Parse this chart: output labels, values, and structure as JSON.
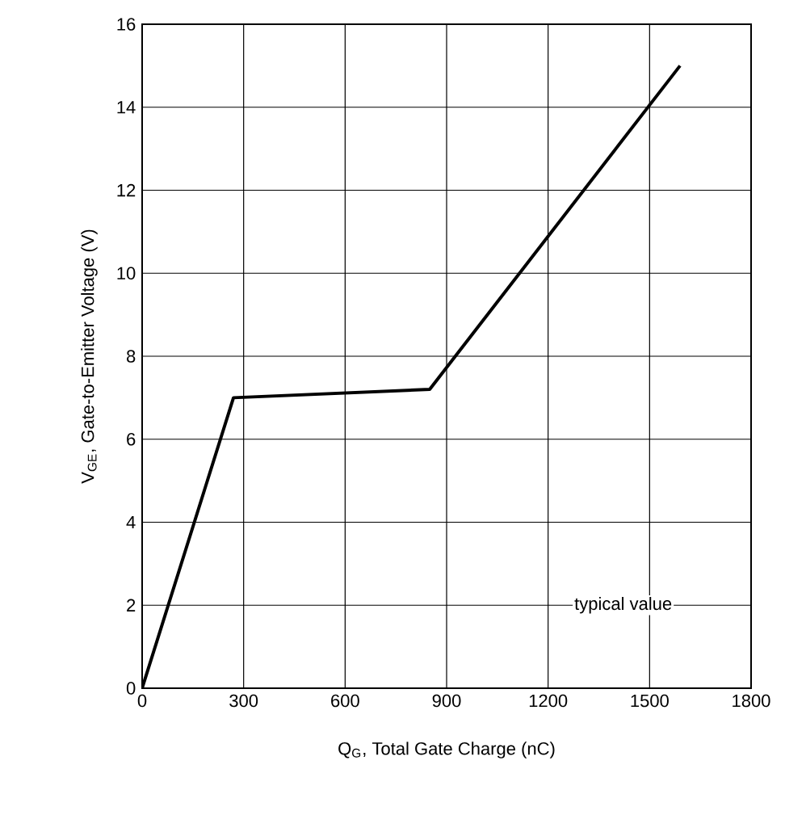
{
  "chart_data": {
    "type": "line",
    "xlabel": "Q$_{G}$, Total Gate Charge (nC)",
    "ylabel": "V$_{GE}$, Gate-to-Emitter Voltage (V)",
    "x": [
      0,
      270,
      850,
      1590
    ],
    "values": [
      0,
      7,
      7.2,
      15
    ],
    "color": "#000000",
    "xlim": [
      0,
      1800
    ],
    "ylim": [
      0,
      16
    ],
    "xticks": [
      0,
      300,
      600,
      900,
      1200,
      1500,
      1800
    ],
    "yticks": [
      0,
      2,
      4,
      6,
      8,
      10,
      12,
      14,
      16
    ],
    "grid": true,
    "annotations": [
      "typical value"
    ]
  }
}
